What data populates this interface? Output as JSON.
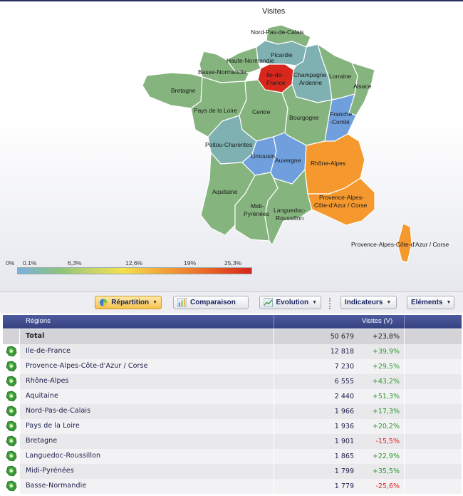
{
  "map": {
    "title": "Visites",
    "regions": {
      "nord": "Nord-Pas-de-Calais",
      "picardie": "Picardie",
      "haute_normandie": "Haute-Normandie",
      "basse_normandie": "Basse-Normandie",
      "idf_1": "Ile-de-",
      "idf_2": "France",
      "champagne_1": "Champagne",
      "champagne_2": "Ardenne",
      "lorraine": "Lorraine",
      "alsace": "Alsace",
      "bretagne": "Bretagne",
      "pays_loire": "Pays de la Loire",
      "centre": "Centre",
      "bourgogne": "Bourgogne",
      "franche_1": "Franche",
      "franche_2": "-Comté",
      "poitou": "Poitou-Charentes",
      "limousin": "Limousin",
      "auvergne": "Auvergne",
      "rhone": "Rhône-Alpes",
      "aquitaine": "Aquitaine",
      "midi_1": "Midi-",
      "midi_2": "Pyrénées",
      "languedoc_1": "Languedoc-",
      "languedoc_2": "Roussillon",
      "paca_1": "Provence-Alpes-",
      "paca_2": "Côte-d'Azur / Corse",
      "corse": "Provence-Alpes-Côte-d'Azur / Corse"
    },
    "colors": {
      "green": "#86b47e",
      "teal": "#7fb1b2",
      "blue": "#6f9fdc",
      "red": "#d8281d",
      "orange": "#f5992f"
    }
  },
  "legend": {
    "labels": [
      "0%",
      "0.1%",
      "6,3%",
      "12,6%",
      "19%",
      "25,3%"
    ]
  },
  "toolbar": {
    "repartition": "Répartition",
    "comparaison": "Comparaison",
    "evolution": "Evolution",
    "indicateurs": "Indicateurs",
    "elements": "Eléments"
  },
  "table": {
    "col_region": "Régions",
    "col_visites": "Visites (V)",
    "total": {
      "name": "Total",
      "value": "50 679",
      "change": "+23,8%"
    },
    "rows": [
      {
        "name": "Ile-de-France",
        "value": "12 818",
        "change": "+39,9%"
      },
      {
        "name": "Provence-Alpes-Côte-d'Azur / Corse",
        "value": "7 230",
        "change": "+29,5%"
      },
      {
        "name": "Rhône-Alpes",
        "value": "6 555",
        "change": "+43,2%"
      },
      {
        "name": "Aquitaine",
        "value": "2 440",
        "change": "+51,3%"
      },
      {
        "name": "Nord-Pas-de-Calais",
        "value": "1 966",
        "change": "+17,3%"
      },
      {
        "name": "Pays de la Loire",
        "value": "1 936",
        "change": "+20,2%"
      },
      {
        "name": "Bretagne",
        "value": "1 901",
        "change": "-15,5%"
      },
      {
        "name": "Languedoc-Roussillon",
        "value": "1 865",
        "change": "+22,9%"
      },
      {
        "name": "Midi-Pyrénées",
        "value": "1 799",
        "change": "+35,5%"
      },
      {
        "name": "Basse-Normandie",
        "value": "1 779",
        "change": "-25,6%"
      }
    ]
  }
}
